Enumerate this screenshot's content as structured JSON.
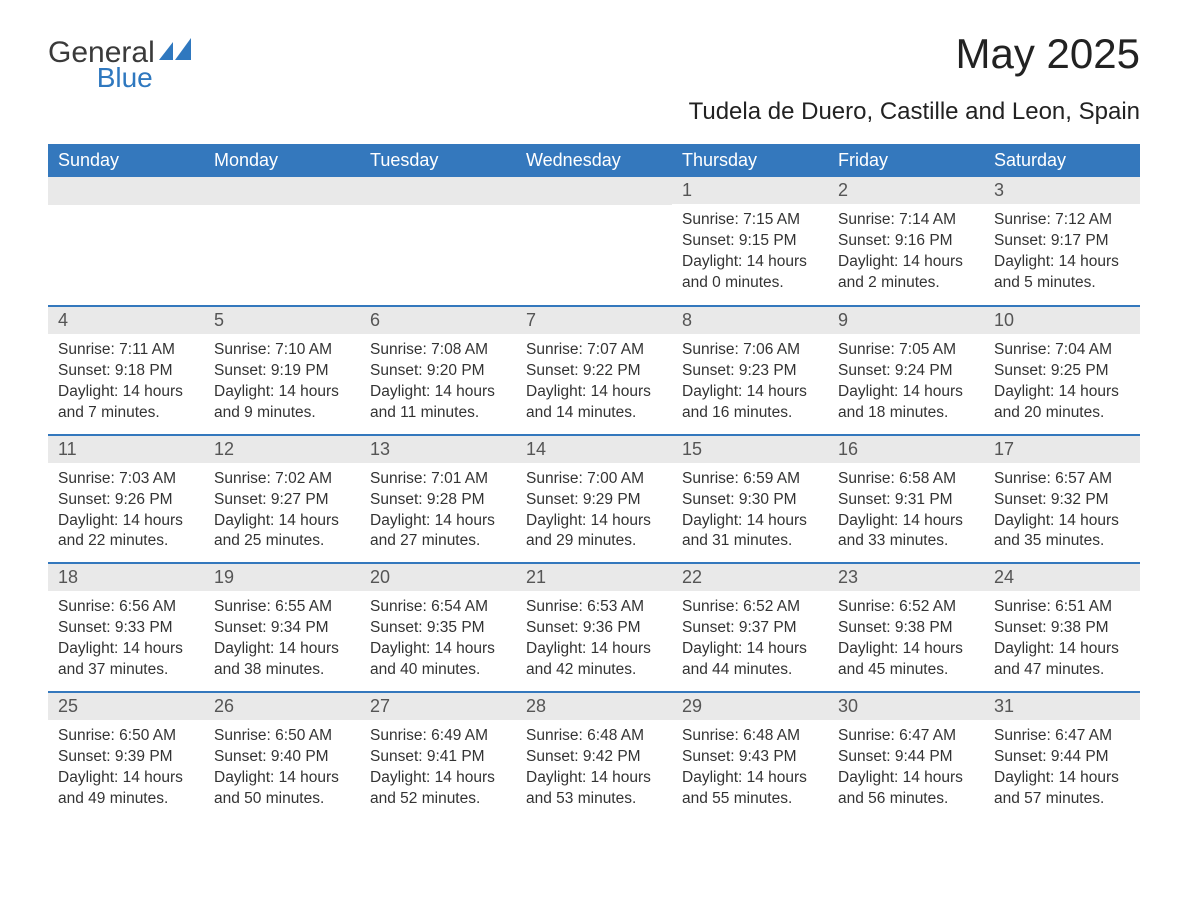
{
  "logo": {
    "text1": "General",
    "text2": "Blue",
    "color_general": "#3a3a3a",
    "color_blue": "#2f78bf"
  },
  "title": "May 2025",
  "subtitle": "Tudela de Duero, Castille and Leon, Spain",
  "colors": {
    "header_bg": "#3478bd",
    "header_text": "#ffffff",
    "daynum_bg": "#e9e9e9",
    "cell_border": "#3478bd",
    "body_text": "#333333",
    "background": "#ffffff"
  },
  "fonts": {
    "title_size": 42,
    "subtitle_size": 24,
    "header_cell_size": 18,
    "daynum_size": 18,
    "body_size": 15.5
  },
  "weekdays": [
    "Sunday",
    "Monday",
    "Tuesday",
    "Wednesday",
    "Thursday",
    "Friday",
    "Saturday"
  ],
  "leading_empty": 4,
  "days": [
    {
      "n": "1",
      "sunrise": "Sunrise: 7:15 AM",
      "sunset": "Sunset: 9:15 PM",
      "day1": "Daylight: 14 hours",
      "day2": "and 0 minutes."
    },
    {
      "n": "2",
      "sunrise": "Sunrise: 7:14 AM",
      "sunset": "Sunset: 9:16 PM",
      "day1": "Daylight: 14 hours",
      "day2": "and 2 minutes."
    },
    {
      "n": "3",
      "sunrise": "Sunrise: 7:12 AM",
      "sunset": "Sunset: 9:17 PM",
      "day1": "Daylight: 14 hours",
      "day2": "and 5 minutes."
    },
    {
      "n": "4",
      "sunrise": "Sunrise: 7:11 AM",
      "sunset": "Sunset: 9:18 PM",
      "day1": "Daylight: 14 hours",
      "day2": "and 7 minutes."
    },
    {
      "n": "5",
      "sunrise": "Sunrise: 7:10 AM",
      "sunset": "Sunset: 9:19 PM",
      "day1": "Daylight: 14 hours",
      "day2": "and 9 minutes."
    },
    {
      "n": "6",
      "sunrise": "Sunrise: 7:08 AM",
      "sunset": "Sunset: 9:20 PM",
      "day1": "Daylight: 14 hours",
      "day2": "and 11 minutes."
    },
    {
      "n": "7",
      "sunrise": "Sunrise: 7:07 AM",
      "sunset": "Sunset: 9:22 PM",
      "day1": "Daylight: 14 hours",
      "day2": "and 14 minutes."
    },
    {
      "n": "8",
      "sunrise": "Sunrise: 7:06 AM",
      "sunset": "Sunset: 9:23 PM",
      "day1": "Daylight: 14 hours",
      "day2": "and 16 minutes."
    },
    {
      "n": "9",
      "sunrise": "Sunrise: 7:05 AM",
      "sunset": "Sunset: 9:24 PM",
      "day1": "Daylight: 14 hours",
      "day2": "and 18 minutes."
    },
    {
      "n": "10",
      "sunrise": "Sunrise: 7:04 AM",
      "sunset": "Sunset: 9:25 PM",
      "day1": "Daylight: 14 hours",
      "day2": "and 20 minutes."
    },
    {
      "n": "11",
      "sunrise": "Sunrise: 7:03 AM",
      "sunset": "Sunset: 9:26 PM",
      "day1": "Daylight: 14 hours",
      "day2": "and 22 minutes."
    },
    {
      "n": "12",
      "sunrise": "Sunrise: 7:02 AM",
      "sunset": "Sunset: 9:27 PM",
      "day1": "Daylight: 14 hours",
      "day2": "and 25 minutes."
    },
    {
      "n": "13",
      "sunrise": "Sunrise: 7:01 AM",
      "sunset": "Sunset: 9:28 PM",
      "day1": "Daylight: 14 hours",
      "day2": "and 27 minutes."
    },
    {
      "n": "14",
      "sunrise": "Sunrise: 7:00 AM",
      "sunset": "Sunset: 9:29 PM",
      "day1": "Daylight: 14 hours",
      "day2": "and 29 minutes."
    },
    {
      "n": "15",
      "sunrise": "Sunrise: 6:59 AM",
      "sunset": "Sunset: 9:30 PM",
      "day1": "Daylight: 14 hours",
      "day2": "and 31 minutes."
    },
    {
      "n": "16",
      "sunrise": "Sunrise: 6:58 AM",
      "sunset": "Sunset: 9:31 PM",
      "day1": "Daylight: 14 hours",
      "day2": "and 33 minutes."
    },
    {
      "n": "17",
      "sunrise": "Sunrise: 6:57 AM",
      "sunset": "Sunset: 9:32 PM",
      "day1": "Daylight: 14 hours",
      "day2": "and 35 minutes."
    },
    {
      "n": "18",
      "sunrise": "Sunrise: 6:56 AM",
      "sunset": "Sunset: 9:33 PM",
      "day1": "Daylight: 14 hours",
      "day2": "and 37 minutes."
    },
    {
      "n": "19",
      "sunrise": "Sunrise: 6:55 AM",
      "sunset": "Sunset: 9:34 PM",
      "day1": "Daylight: 14 hours",
      "day2": "and 38 minutes."
    },
    {
      "n": "20",
      "sunrise": "Sunrise: 6:54 AM",
      "sunset": "Sunset: 9:35 PM",
      "day1": "Daylight: 14 hours",
      "day2": "and 40 minutes."
    },
    {
      "n": "21",
      "sunrise": "Sunrise: 6:53 AM",
      "sunset": "Sunset: 9:36 PM",
      "day1": "Daylight: 14 hours",
      "day2": "and 42 minutes."
    },
    {
      "n": "22",
      "sunrise": "Sunrise: 6:52 AM",
      "sunset": "Sunset: 9:37 PM",
      "day1": "Daylight: 14 hours",
      "day2": "and 44 minutes."
    },
    {
      "n": "23",
      "sunrise": "Sunrise: 6:52 AM",
      "sunset": "Sunset: 9:38 PM",
      "day1": "Daylight: 14 hours",
      "day2": "and 45 minutes."
    },
    {
      "n": "24",
      "sunrise": "Sunrise: 6:51 AM",
      "sunset": "Sunset: 9:38 PM",
      "day1": "Daylight: 14 hours",
      "day2": "and 47 minutes."
    },
    {
      "n": "25",
      "sunrise": "Sunrise: 6:50 AM",
      "sunset": "Sunset: 9:39 PM",
      "day1": "Daylight: 14 hours",
      "day2": "and 49 minutes."
    },
    {
      "n": "26",
      "sunrise": "Sunrise: 6:50 AM",
      "sunset": "Sunset: 9:40 PM",
      "day1": "Daylight: 14 hours",
      "day2": "and 50 minutes."
    },
    {
      "n": "27",
      "sunrise": "Sunrise: 6:49 AM",
      "sunset": "Sunset: 9:41 PM",
      "day1": "Daylight: 14 hours",
      "day2": "and 52 minutes."
    },
    {
      "n": "28",
      "sunrise": "Sunrise: 6:48 AM",
      "sunset": "Sunset: 9:42 PM",
      "day1": "Daylight: 14 hours",
      "day2": "and 53 minutes."
    },
    {
      "n": "29",
      "sunrise": "Sunrise: 6:48 AM",
      "sunset": "Sunset: 9:43 PM",
      "day1": "Daylight: 14 hours",
      "day2": "and 55 minutes."
    },
    {
      "n": "30",
      "sunrise": "Sunrise: 6:47 AM",
      "sunset": "Sunset: 9:44 PM",
      "day1": "Daylight: 14 hours",
      "day2": "and 56 minutes."
    },
    {
      "n": "31",
      "sunrise": "Sunrise: 6:47 AM",
      "sunset": "Sunset: 9:44 PM",
      "day1": "Daylight: 14 hours",
      "day2": "and 57 minutes."
    }
  ]
}
